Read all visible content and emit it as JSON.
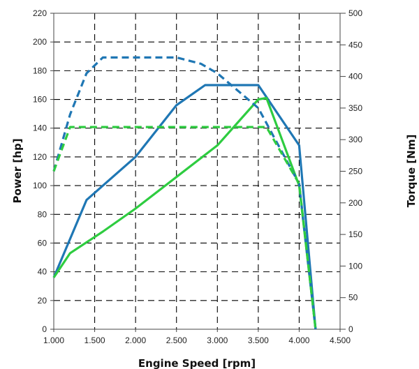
{
  "chart_data": {
    "type": "line",
    "title": "",
    "xlabel": "Engine Speed [rpm]",
    "ylabel": "Power [hp]",
    "y2label": "Torque [Nm]",
    "xlim": [
      1000,
      4500
    ],
    "ylim": [
      0,
      220
    ],
    "y2lim": [
      0,
      500
    ],
    "grid": true,
    "x_ticks": [
      {
        "value": 1000,
        "label": "1.000"
      },
      {
        "value": 1500,
        "label": "1.500"
      },
      {
        "value": 2000,
        "label": "2.000"
      },
      {
        "value": 2500,
        "label": "2.500"
      },
      {
        "value": 3000,
        "label": "3.000"
      },
      {
        "value": 3500,
        "label": "3.500"
      },
      {
        "value": 4000,
        "label": "4.000"
      },
      {
        "value": 4500,
        "label": "4.500"
      }
    ],
    "y_ticks": [
      {
        "value": 0,
        "label": "0"
      },
      {
        "value": 20,
        "label": "20"
      },
      {
        "value": 40,
        "label": "40"
      },
      {
        "value": 60,
        "label": "60"
      },
      {
        "value": 80,
        "label": "80"
      },
      {
        "value": 100,
        "label": "100"
      },
      {
        "value": 120,
        "label": "120"
      },
      {
        "value": 140,
        "label": "140"
      },
      {
        "value": 160,
        "label": "160"
      },
      {
        "value": 180,
        "label": "180"
      },
      {
        "value": 200,
        "label": "200"
      },
      {
        "value": 220,
        "label": "220"
      }
    ],
    "y2_ticks": [
      {
        "value": 0,
        "label": "0"
      },
      {
        "value": 50,
        "label": "50"
      },
      {
        "value": 100,
        "label": "100"
      },
      {
        "value": 150,
        "label": "150"
      },
      {
        "value": 200,
        "label": "200"
      },
      {
        "value": 250,
        "label": "250"
      },
      {
        "value": 300,
        "label": "300"
      },
      {
        "value": 350,
        "label": "350"
      },
      {
        "value": 400,
        "label": "400"
      },
      {
        "value": 450,
        "label": "450"
      },
      {
        "value": 500,
        "label": "500"
      }
    ],
    "series": [
      {
        "axis": "left",
        "color": "#1f77b4",
        "style": "solid",
        "x": [
          1000,
          1400,
          2000,
          2500,
          2850,
          3500,
          4000,
          4200
        ],
        "y": [
          36,
          90,
          120,
          156,
          170,
          170,
          128,
          0
        ]
      },
      {
        "axis": "left",
        "color": "#2ecc40",
        "style": "solid",
        "x": [
          1000,
          1200,
          1600,
          2000,
          2500,
          3000,
          3500,
          3600,
          4000,
          4200
        ],
        "y": [
          36,
          53,
          68,
          84,
          106,
          128,
          160,
          161,
          100,
          0
        ]
      },
      {
        "axis": "right",
        "color": "#1f77b4",
        "style": "dashed",
        "x": [
          1000,
          1200,
          1400,
          1600,
          2000,
          2500,
          2800,
          3000,
          3500,
          4000,
          4200
        ],
        "y": [
          250,
          340,
          405,
          430,
          430,
          430,
          420,
          405,
          350,
          230,
          0
        ]
      },
      {
        "axis": "right",
        "color": "#2ecc40",
        "style": "dashed",
        "x": [
          1000,
          1200,
          2000,
          3000,
          3600,
          4000,
          4200
        ],
        "y": [
          250,
          320,
          320,
          320,
          320,
          230,
          0
        ]
      }
    ]
  }
}
